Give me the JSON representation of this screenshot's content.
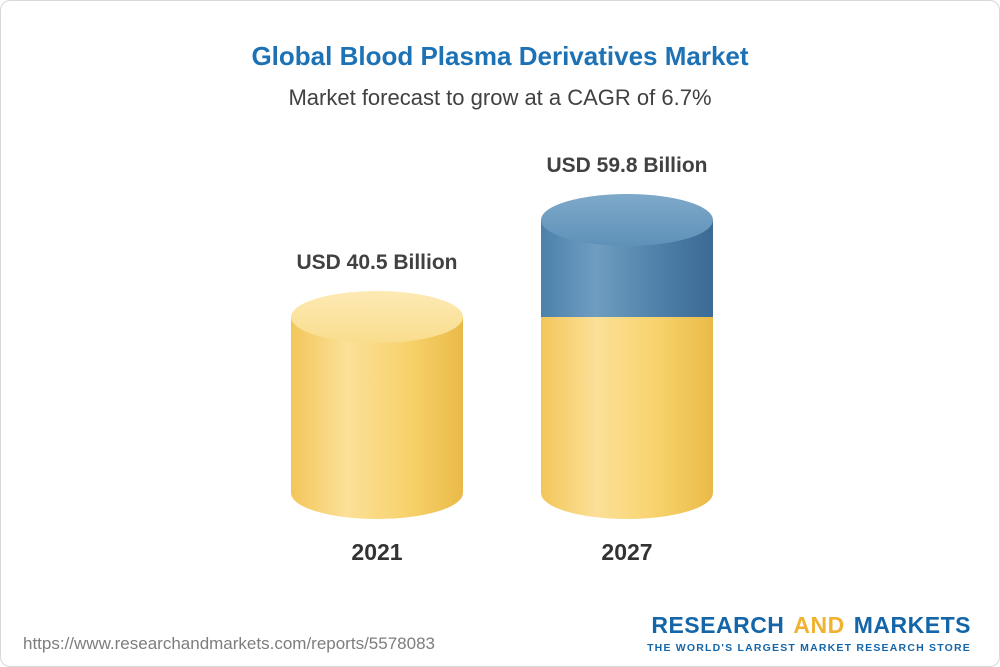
{
  "header": {
    "title": "Global Blood Plasma Derivatives Market",
    "subtitle": "Market forecast to grow at a CAGR of 6.7%"
  },
  "chart_data": {
    "type": "bar",
    "style": "3d-cylinder",
    "categories": [
      "2021",
      "2027"
    ],
    "values": [
      40.5,
      59.8
    ],
    "value_labels": [
      "USD 40.5 Billion",
      "USD 59.8 Billion"
    ],
    "unit": "USD Billion",
    "title": "Global Blood Plasma Derivatives Market",
    "subtitle": "Market forecast to grow at a CAGR of 6.7%",
    "cagr_percent": 6.7,
    "colors": {
      "base_segment": "#f6cf65",
      "growth_segment": "#4d82ab",
      "title": "#1d71b5",
      "label_text": "#414042"
    },
    "notes": "2027 bar shows base value in yellow with growth above 2021 level in blue; no axes or gridlines shown"
  },
  "footer": {
    "url": "https://www.researchandmarkets.com/reports/5578083",
    "logo": {
      "word_research": "RESEARCH",
      "word_and": "AND",
      "word_markets": "MARKETS",
      "tagline": "THE WORLD'S LARGEST MARKET RESEARCH STORE"
    }
  }
}
